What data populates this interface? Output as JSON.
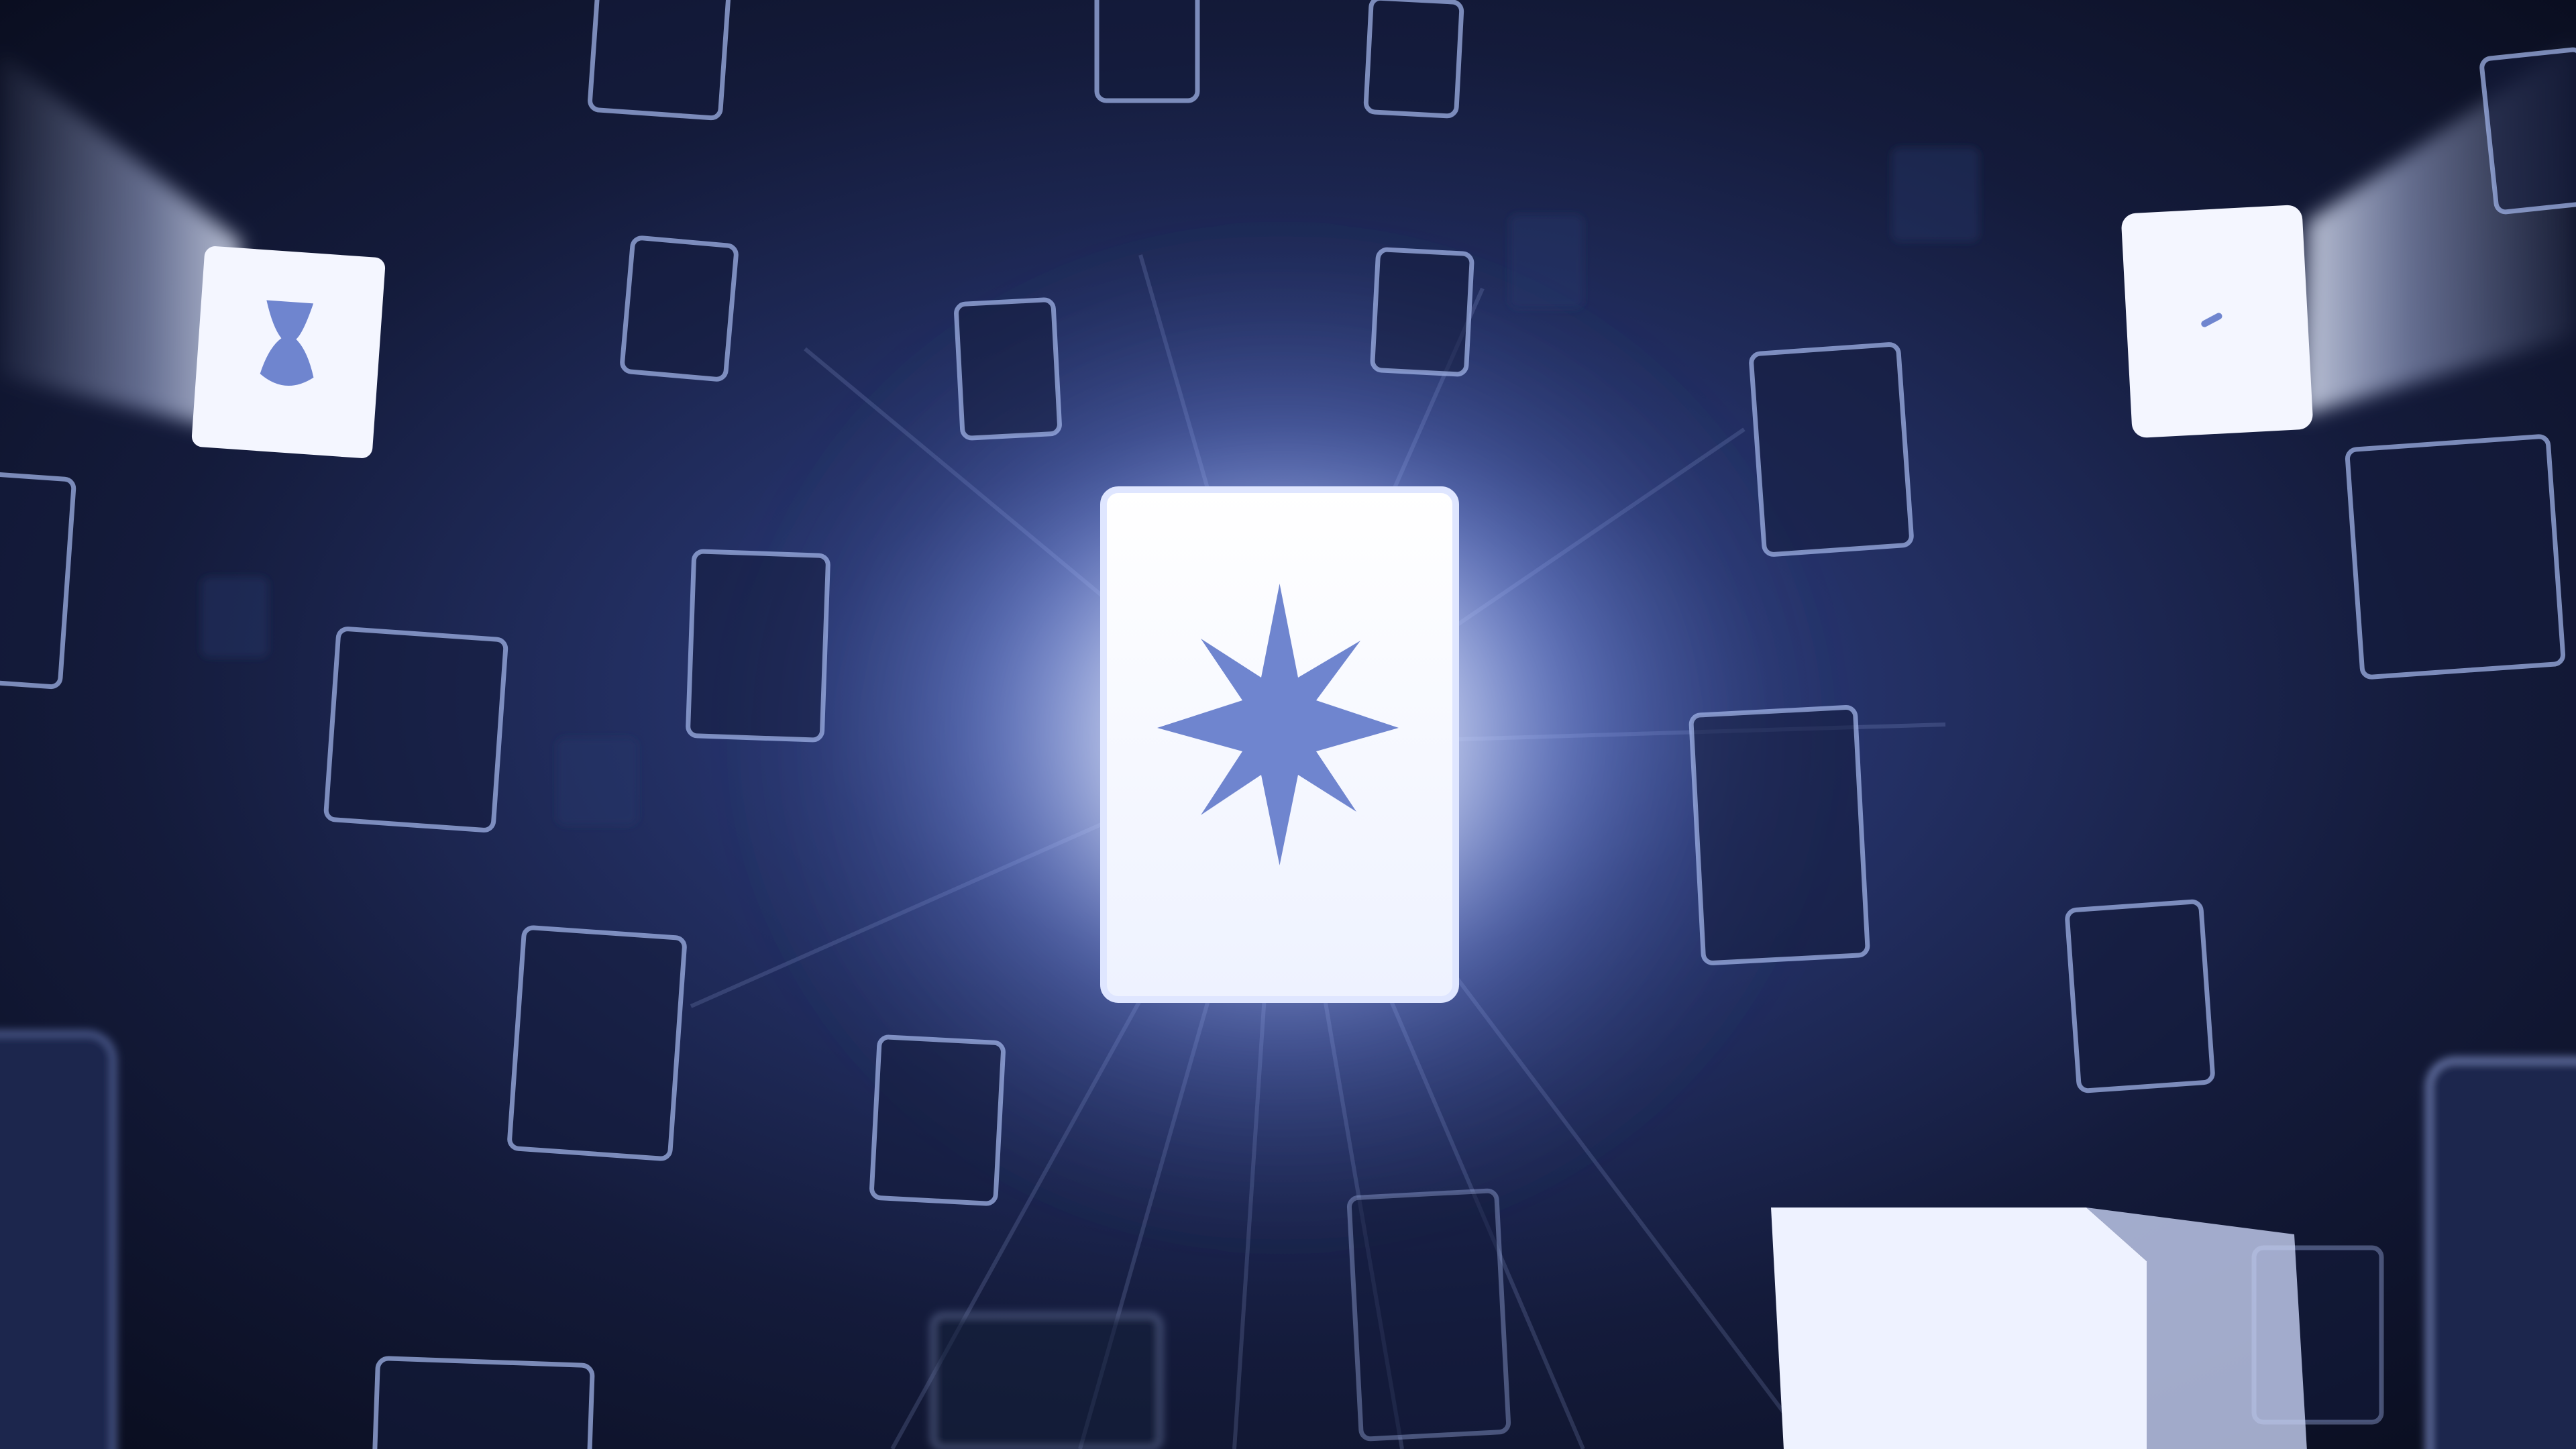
{
  "scene": {
    "description_colors": {
      "background_deep": "#0a0f22",
      "background_mid": "#1b2650",
      "glow_core": "#ffffff",
      "glow_blue": "#8ea6ff",
      "tile_edge": "#9fb1e6",
      "tile_fill": "#1a2142",
      "symbol_blue": "#6f85cf"
    },
    "focal_card_icon": "twelve-point-star-icon",
    "left_card_icon": "hourglass-shape-icon",
    "right_card_icon": "small-dash-icon"
  }
}
